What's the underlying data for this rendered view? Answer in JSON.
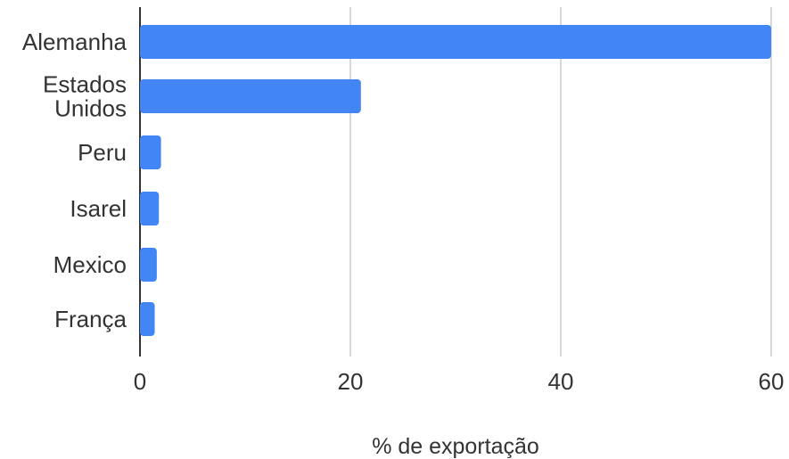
{
  "chart_data": {
    "type": "bar",
    "orientation": "horizontal",
    "categories": [
      "Alemanha",
      "Estados Unidos",
      "Peru",
      "Isarel",
      "Mexico",
      "França"
    ],
    "values": [
      60.0,
      21.0,
      2.0,
      1.8,
      1.6,
      1.4
    ],
    "xlabel": "% de exportação",
    "ylabel": "",
    "xlim": [
      0,
      60
    ],
    "xticks": [
      0,
      20,
      40,
      60
    ],
    "grid": true,
    "bar_color": "#4285f4"
  }
}
